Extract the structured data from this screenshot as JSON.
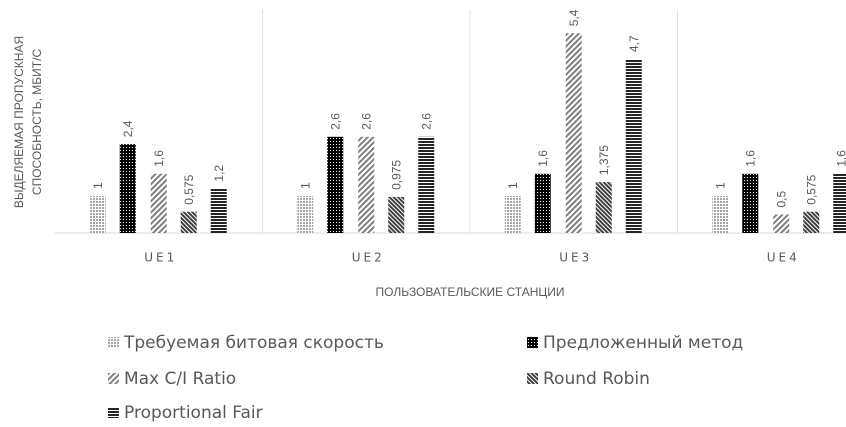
{
  "chart_data": {
    "type": "bar",
    "y_label": [
      "ВЫДЕЛЯЕМАЯ ПРОПУСКНАЯ",
      "СПОСОБНОСТЬ, МБИТ/С"
    ],
    "x_label": "ПОЛЬЗОВАТЕЛЬСКИЕ СТАНЦИИ",
    "categories": [
      "UE1",
      "UE2",
      "UE3",
      "UE4"
    ],
    "ylim": [
      0,
      6
    ],
    "series": [
      {
        "name": "Требуемая битовая скорость",
        "color": "#a6a6a6",
        "values": [
          1,
          1,
          1,
          1
        ],
        "value_labels": [
          "1",
          "1",
          "1",
          "1"
        ]
      },
      {
        "name": "Предложенный метод",
        "color": "#000000",
        "values": [
          2.4,
          2.6,
          1.6,
          1.6
        ],
        "value_labels": [
          "2,4",
          "2,6",
          "1,6",
          "1,6"
        ]
      },
      {
        "name": "Max C/I Ratio",
        "color": "#7f7f7f",
        "values": [
          1.6,
          2.6,
          5.4,
          0.5
        ],
        "value_labels": [
          "1,6",
          "2,6",
          "5,4",
          "0,5"
        ]
      },
      {
        "name": "Round Robin",
        "color": "#404040",
        "values": [
          0.575,
          0.975,
          1.375,
          0.575
        ],
        "value_labels": [
          "0,575",
          "0,975",
          "1,375",
          "0,575"
        ]
      },
      {
        "name": "Proportional Fair",
        "color": "#262626",
        "values": [
          1.2,
          2.6,
          4.7,
          1.6
        ],
        "value_labels": [
          "1,2",
          "2,6",
          "4,7",
          "1,6"
        ]
      }
    ]
  }
}
